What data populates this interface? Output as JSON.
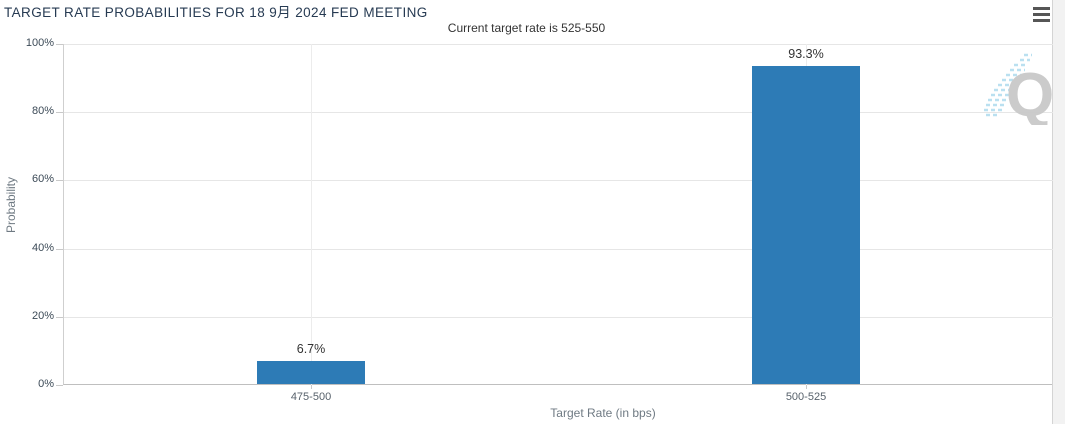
{
  "header": {
    "title": "TARGET RATE PROBABILITIES FOR 18 9月 2024 FED MEETING",
    "subtitle": "Current target rate is 525-550",
    "menu_icon": "hamburger-menu-icon"
  },
  "watermark": {
    "letter": "Q",
    "name": "quikstrike-logo"
  },
  "colors": {
    "bar": "#2d7bb6",
    "grid": "#e6e6e6",
    "axis_line": "#bfbfbf",
    "title_text": "#263a52",
    "label_text": "#333333",
    "muted_text": "#6f7a83",
    "watermark_gray": "#c9c9c9",
    "watermark_blue": "#b7dff0"
  },
  "chart_data": {
    "type": "bar",
    "title": "TARGET RATE PROBABILITIES FOR 18 9月 2024 FED MEETING",
    "subtitle": "Current target rate is 525-550",
    "categories": [
      "475-500",
      "500-525"
    ],
    "values": [
      6.7,
      93.3
    ],
    "value_labels": [
      "6.7%",
      "93.3%"
    ],
    "xlabel": "Target Rate (in bps)",
    "ylabel": "Probability",
    "ylim": [
      0,
      100
    ],
    "ytick_labels": [
      "0%",
      "20%",
      "40%",
      "60%",
      "80%",
      "100%"
    ],
    "grid": true,
    "legend": "none",
    "bar_color": "#2d7bb6"
  }
}
